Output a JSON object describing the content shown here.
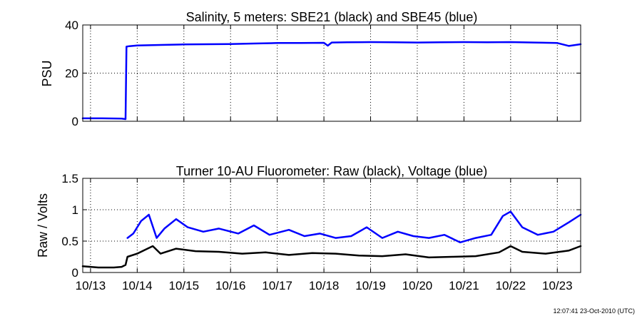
{
  "footer": {
    "timestamp": "12:07:41 23-Oct-2010 (UTC)"
  },
  "colors": {
    "black_series": "#000000",
    "blue_series": "#0000ff",
    "grid": "#000000",
    "background": "#ffffff"
  },
  "chart_data": [
    {
      "type": "line",
      "title": "Salinity, 5 meters: SBE21 (black) and SBE45 (blue)",
      "xlabel": "",
      "ylabel": "PSU",
      "xlim": [
        "2010-10-12T20:00",
        "2010-10-23T12:00"
      ],
      "ylim": [
        0,
        40
      ],
      "yticks": [
        0,
        20,
        40
      ],
      "ytick_labels": [
        "0",
        "20",
        "40"
      ],
      "xticks": [
        "2010-10-13",
        "2010-10-14",
        "2010-10-15",
        "2010-10-16",
        "2010-10-17",
        "2010-10-18",
        "2010-10-19",
        "2010-10-20",
        "2010-10-21",
        "2010-10-22",
        "2010-10-23"
      ],
      "xtick_labels": [],
      "grid": true,
      "series": [
        {
          "color": "#0000ff",
          "x": [
            "2010-10-12T20:00",
            "2010-10-13T06:00",
            "2010-10-13T16:00",
            "2010-10-13T18:00",
            "2010-10-13T18:30",
            "2010-10-13T20:00",
            "2010-10-14T00:00",
            "2010-10-14T12:00",
            "2010-10-15T00:00",
            "2010-10-15T12:00",
            "2010-10-16T00:00",
            "2010-10-16T12:00",
            "2010-10-17T00:00",
            "2010-10-17T12:00",
            "2010-10-18T00:00",
            "2010-10-18T02:00",
            "2010-10-18T04:00",
            "2010-10-18T12:00",
            "2010-10-19T00:00",
            "2010-10-19T12:00",
            "2010-10-20T00:00",
            "2010-10-20T12:00",
            "2010-10-21T00:00",
            "2010-10-21T12:00",
            "2010-10-22T00:00",
            "2010-10-22T12:00",
            "2010-10-23T00:00",
            "2010-10-23T06:00",
            "2010-10-23T12:00"
          ],
          "y": [
            1.2,
            1.2,
            1.1,
            0.9,
            31.0,
            31.2,
            31.5,
            31.7,
            31.9,
            32.0,
            32.1,
            32.3,
            32.5,
            32.5,
            32.6,
            31.4,
            32.7,
            32.8,
            32.9,
            32.8,
            32.7,
            32.8,
            32.9,
            32.8,
            32.9,
            32.7,
            32.5,
            31.3,
            32.0
          ]
        }
      ]
    },
    {
      "type": "line",
      "title": "Turner 10-AU Fluorometer: Raw (black), Voltage (blue)",
      "xlabel": "",
      "ylabel": "Raw / Volts",
      "xlim": [
        "2010-10-12T20:00",
        "2010-10-23T12:00"
      ],
      "ylim": [
        0,
        1.5
      ],
      "yticks": [
        0,
        0.5,
        1,
        1.5
      ],
      "ytick_labels": [
        "0",
        "0.5",
        "1",
        "1.5"
      ],
      "xticks": [
        "2010-10-13",
        "2010-10-14",
        "2010-10-15",
        "2010-10-16",
        "2010-10-17",
        "2010-10-18",
        "2010-10-19",
        "2010-10-20",
        "2010-10-21",
        "2010-10-22",
        "2010-10-23"
      ],
      "xtick_labels": [
        "10/13",
        "10/14",
        "10/15",
        "10/16",
        "10/17",
        "10/18",
        "10/19",
        "10/20",
        "10/21",
        "10/22",
        "10/23"
      ],
      "grid": true,
      "series": [
        {
          "color": "#000000",
          "x": [
            "2010-10-12T20:00",
            "2010-10-13T04:00",
            "2010-10-13T12:00",
            "2010-10-13T16:00",
            "2010-10-13T18:00",
            "2010-10-13T19:00",
            "2010-10-14T00:00",
            "2010-10-14T04:00",
            "2010-10-14T08:00",
            "2010-10-14T12:00",
            "2010-10-14T20:00",
            "2010-10-15T06:00",
            "2010-10-15T18:00",
            "2010-10-16T06:00",
            "2010-10-16T18:00",
            "2010-10-17T06:00",
            "2010-10-17T18:00",
            "2010-10-18T06:00",
            "2010-10-18T18:00",
            "2010-10-19T06:00",
            "2010-10-19T18:00",
            "2010-10-20T06:00",
            "2010-10-20T18:00",
            "2010-10-21T06:00",
            "2010-10-21T18:00",
            "2010-10-22T00:00",
            "2010-10-22T06:00",
            "2010-10-22T18:00",
            "2010-10-23T06:00",
            "2010-10-23T12:00"
          ],
          "y": [
            0.1,
            0.08,
            0.08,
            0.09,
            0.12,
            0.25,
            0.3,
            0.36,
            0.42,
            0.3,
            0.38,
            0.34,
            0.33,
            0.3,
            0.32,
            0.28,
            0.31,
            0.3,
            0.27,
            0.26,
            0.29,
            0.24,
            0.25,
            0.26,
            0.32,
            0.42,
            0.33,
            0.3,
            0.35,
            0.42
          ]
        },
        {
          "color": "#0000ff",
          "x": [
            "2010-10-13T19:00",
            "2010-10-13T22:00",
            "2010-10-14T02:00",
            "2010-10-14T06:00",
            "2010-10-14T10:00",
            "2010-10-14T14:00",
            "2010-10-14T20:00",
            "2010-10-15T02:00",
            "2010-10-15T10:00",
            "2010-10-15T18:00",
            "2010-10-16T04:00",
            "2010-10-16T12:00",
            "2010-10-16T20:00",
            "2010-10-17T06:00",
            "2010-10-17T14:00",
            "2010-10-17T22:00",
            "2010-10-18T06:00",
            "2010-10-18T14:00",
            "2010-10-18T22:00",
            "2010-10-19T06:00",
            "2010-10-19T14:00",
            "2010-10-19T22:00",
            "2010-10-20T06:00",
            "2010-10-20T14:00",
            "2010-10-20T22:00",
            "2010-10-21T06:00",
            "2010-10-21T14:00",
            "2010-10-21T20:00",
            "2010-10-22T00:00",
            "2010-10-22T06:00",
            "2010-10-22T14:00",
            "2010-10-22T22:00",
            "2010-10-23T06:00",
            "2010-10-23T12:00"
          ],
          "y": [
            0.55,
            0.62,
            0.82,
            0.92,
            0.55,
            0.7,
            0.85,
            0.72,
            0.65,
            0.7,
            0.62,
            0.75,
            0.6,
            0.68,
            0.58,
            0.62,
            0.55,
            0.58,
            0.72,
            0.55,
            0.65,
            0.58,
            0.55,
            0.6,
            0.48,
            0.55,
            0.6,
            0.9,
            0.97,
            0.72,
            0.6,
            0.65,
            0.8,
            0.92
          ]
        }
      ]
    }
  ]
}
